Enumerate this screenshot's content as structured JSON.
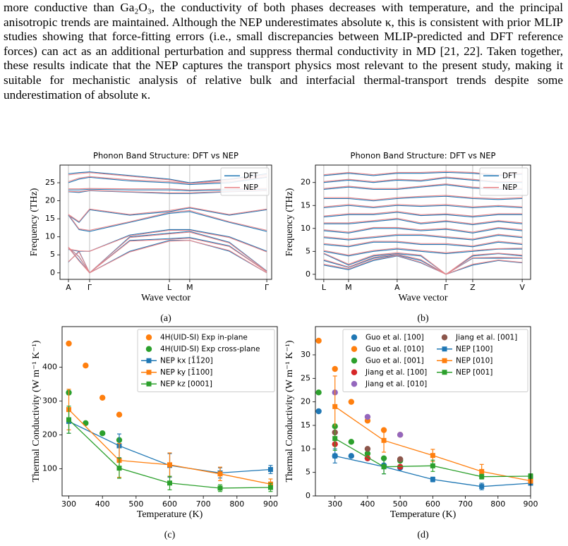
{
  "paragraph": "more conductive than Ga₂O₃, the conductivity of both phases decreases with temperature, and the principal anisotropic trends are maintained. Although the NEP underestimates absolute κ, this is consistent with prior MLIP studies showing that force-fitting errors (i.e., small discrepancies between MLIP-predicted and DFT reference forces) can act as an additional perturbation and suppress thermal conductivity in MD [21, 22]. Taken together, these results indicate that the NEP captures the transport physics most relevant to the present study, making it suitable for mechanistic analysis of relative bulk and interfacial thermal-transport trends despite some underestimation of absolute κ.",
  "chart_data": [
    {
      "type": "band",
      "title": "Phonon Band Structure: DFT vs NEP",
      "x_label": "Wave vector",
      "y_label": "Frequency (THz)",
      "caption": "(a)",
      "x": [
        0.04,
        0.09,
        0.14,
        0.33,
        0.517,
        0.613,
        0.8,
        0.977
      ],
      "xlim": [
        0,
        1
      ],
      "ylim": [
        -1.8,
        29.9
      ],
      "xticks": [
        {
          "value": 0.04,
          "label": "A"
        },
        {
          "value": 0.14,
          "label": "Γ"
        },
        {
          "value": 0.517,
          "label": "L"
        },
        {
          "value": 0.613,
          "label": "M"
        },
        {
          "value": 0.977,
          "label": "Γ"
        }
      ],
      "yticks": [
        0,
        5,
        10,
        15,
        20,
        25
      ],
      "grid": "x",
      "legend": "upper right",
      "series": [
        {
          "name": "DFT",
          "color": "#1f77b4",
          "bands": [
            [
              7,
              3.5,
              0,
              6,
              9,
              9,
              6,
              0
            ],
            [
              7,
              4.5,
              0,
              9,
              9.5,
              9.8,
              7.5,
              0.3
            ],
            [
              3,
              6,
              0,
              10,
              11,
              11.5,
              8.5,
              0.5
            ],
            [
              6.5,
              6,
              6,
              10.5,
              12,
              12,
              10,
              6
            ],
            [
              16,
              12,
              11.5,
              14,
              16.5,
              17,
              14,
              11.5
            ],
            [
              16,
              14,
              17.5,
              16,
              17,
              18,
              16,
              17.5
            ],
            [
              22.5,
              22.3,
              22.8,
              22.4,
              22,
              22,
              22.5,
              22.8
            ],
            [
              23,
              23,
              23.2,
              23,
              23,
              22.8,
              23,
              23.2
            ],
            [
              25,
              26,
              26.5,
              25.5,
              25,
              24.5,
              25,
              26.5
            ],
            [
              27.5,
              27.8,
              28,
              27,
              26,
              25,
              26,
              27.5
            ]
          ]
        },
        {
          "name": "NEP",
          "color": "#e8868a",
          "bands": [
            [
              7,
              3.3,
              0,
              5.8,
              8.8,
              9,
              6.2,
              0
            ],
            [
              7.1,
              4.4,
              0,
              8.8,
              9.3,
              9.6,
              7.3,
              0.3
            ],
            [
              3.1,
              5.8,
              0,
              9.8,
              10.8,
              11.3,
              8.3,
              0.4
            ],
            [
              6.6,
              6.1,
              6,
              10.3,
              11.8,
              11.8,
              9.8,
              5.8
            ],
            [
              16.2,
              12.2,
              11.8,
              14.2,
              16.8,
              17.3,
              14.2,
              11.8
            ],
            [
              16.2,
              14.2,
              17.7,
              16.2,
              17.3,
              18.2,
              16.2,
              17.7
            ],
            [
              22.6,
              22.5,
              22.9,
              22.5,
              22.2,
              22.2,
              22.6,
              22.9
            ],
            [
              23.3,
              23.3,
              23.4,
              23.3,
              23.3,
              23,
              23.3,
              23.4
            ],
            [
              25.3,
              26.3,
              26.7,
              25.8,
              25.3,
              24.8,
              25.3,
              26.7
            ],
            [
              27.2,
              27.5,
              27.8,
              26.8,
              25.8,
              24.8,
              25.8,
              27.2
            ]
          ]
        }
      ]
    },
    {
      "type": "band",
      "title": "Phonon Band Structure: DFT vs NEP",
      "x_label": "Wave vector",
      "y_label": "Frequency (THz)",
      "caption": "(b)",
      "x": [
        0.039,
        0.154,
        0.27,
        0.38,
        0.49,
        0.607,
        0.731,
        0.85,
        0.961
      ],
      "xlim": [
        0,
        1
      ],
      "ylim": [
        -1.1,
        23.8
      ],
      "xticks": [
        {
          "value": 0.039,
          "label": "L"
        },
        {
          "value": 0.154,
          "label": "M"
        },
        {
          "value": 0.38,
          "label": "A"
        },
        {
          "value": 0.607,
          "label": "Γ"
        },
        {
          "value": 0.731,
          "label": "Z"
        },
        {
          "value": 0.961,
          "label": "V"
        }
      ],
      "yticks": [
        0,
        5,
        10,
        15,
        20
      ],
      "grid": "x",
      "legend": "upper right",
      "series": [
        {
          "name": "DFT",
          "color": "#1f77b4",
          "bands": [
            [
              2,
              1,
              3,
              4,
              2.5,
              0,
              2,
              3,
              2.5
            ],
            [
              3,
              1.5,
              3.5,
              4.2,
              3,
              0,
              3.5,
              3.5,
              3.5
            ],
            [
              4.5,
              2,
              4,
              4.5,
              4,
              0,
              4,
              4.5,
              4
            ],
            [
              5,
              4,
              5,
              5.5,
              5,
              4.5,
              5,
              5.5,
              5.5
            ],
            [
              6.5,
              6,
              7,
              7,
              6.5,
              6.5,
              6,
              7,
              6.5
            ],
            [
              8,
              7.5,
              8,
              8.5,
              8.5,
              8,
              7.5,
              8.5,
              8
            ],
            [
              9.5,
              9,
              10,
              10,
              9.5,
              9.8,
              9,
              10,
              9.5
            ],
            [
              11,
              11,
              11.5,
              12,
              11,
              11.5,
              10.8,
              11.5,
              11
            ],
            [
              12.5,
              13,
              13,
              13.5,
              12.8,
              13,
              12.5,
              13,
              13
            ],
            [
              14.5,
              15,
              14.5,
              15,
              14.8,
              15,
              14.5,
              14.8,
              14.5
            ],
            [
              16.5,
              16.5,
              16,
              16.5,
              16.8,
              17,
              16.5,
              16.3,
              16.5
            ],
            [
              18.5,
              19,
              18.5,
              18.5,
              19,
              19.5,
              18.8,
              18.5,
              18.5
            ],
            [
              20,
              20.5,
              20,
              20.5,
              20.3,
              21,
              20.5,
              20,
              20
            ],
            [
              21.5,
              22,
              21.5,
              22,
              22,
              22.2,
              22,
              21.5,
              21.8
            ]
          ]
        },
        {
          "name": "NEP",
          "color": "#e8868a",
          "bands": [
            [
              2.2,
              1.2,
              3.2,
              4.1,
              2.6,
              0,
              2.2,
              3.1,
              2.6
            ],
            [
              3.2,
              1.6,
              3.7,
              4.4,
              3.2,
              0,
              3.6,
              3.7,
              3.6
            ],
            [
              4.6,
              2.2,
              4.2,
              4.7,
              4.2,
              0,
              4.2,
              4.6,
              4.2
            ],
            [
              5.2,
              4.2,
              5.2,
              5.7,
              5.2,
              4.7,
              5.2,
              5.6,
              5.7
            ],
            [
              6.7,
              6.2,
              7.2,
              7.2,
              6.7,
              6.7,
              6.2,
              7.2,
              6.7
            ],
            [
              8.2,
              7.7,
              8.2,
              8.7,
              8.7,
              8.2,
              7.7,
              8.7,
              8.2
            ],
            [
              9.7,
              9.2,
              10.2,
              10.2,
              9.7,
              10,
              9.2,
              10.2,
              9.7
            ],
            [
              11.2,
              11.2,
              11.7,
              12.2,
              11.2,
              11.7,
              11,
              11.7,
              11.2
            ],
            [
              12.7,
              13.2,
              13.2,
              13.7,
              13,
              13.2,
              12.7,
              13.2,
              13.2
            ],
            [
              14.7,
              15.2,
              14.7,
              15.2,
              15,
              15.2,
              14.7,
              15,
              14.7
            ],
            [
              16.7,
              16.7,
              16.2,
              16.7,
              17,
              17.2,
              16.7,
              16.5,
              16.7
            ],
            [
              18.7,
              19.2,
              18.7,
              18.7,
              19.2,
              19.7,
              19,
              18.7,
              18.7
            ],
            [
              20.2,
              20.7,
              20.2,
              20.7,
              20.5,
              21.2,
              20.7,
              20.2,
              20.2
            ],
            [
              21.7,
              22.2,
              21.7,
              22.2,
              22.2,
              22.4,
              22.2,
              21.7,
              22
            ]
          ]
        }
      ]
    },
    {
      "type": "errorbar",
      "x_label": "Temperature (K)",
      "y_label": "Thermal Conductivity (W m⁻¹ K⁻¹)",
      "caption": "(c)",
      "xlim": [
        280,
        920
      ],
      "ylim": [
        20,
        520
      ],
      "xticks": [
        300,
        400,
        500,
        600,
        700,
        800,
        900
      ],
      "yticks": [
        100,
        200,
        300,
        400
      ],
      "grid": false,
      "legend": "upper right",
      "legend_columns": 1,
      "series": [
        {
          "name": "4H(UID-SI) Exp in-plane",
          "color": "#ff7f0e",
          "marker": "o",
          "line": false,
          "x": [
            300,
            350,
            400,
            450
          ],
          "values": [
            470,
            405,
            310,
            260
          ]
        },
        {
          "name": "4H(UID-SI) Exp cross-plane",
          "color": "#2ca02c",
          "marker": "o",
          "line": false,
          "x": [
            300,
            350,
            400,
            450
          ],
          "values": [
            325,
            235,
            205,
            185
          ]
        },
        {
          "name": "NEP kx [1̄1̄20]",
          "color": "#1f77b4",
          "marker": "s",
          "line": true,
          "x": [
            300,
            450,
            600,
            750,
            900
          ],
          "values": [
            240,
            168,
            110,
            88,
            98
          ],
          "errors": [
            35,
            35,
            35,
            15,
            12
          ]
        },
        {
          "name": "NEP ky [1̄100]",
          "color": "#ff7f0e",
          "marker": "s",
          "line": true,
          "x": [
            300,
            450,
            600,
            750,
            900
          ],
          "values": [
            275,
            125,
            112,
            85,
            55
          ],
          "errors": [
            60,
            50,
            35,
            20,
            15
          ]
        },
        {
          "name": "NEP kz [0001]",
          "color": "#2ca02c",
          "marker": "s",
          "line": true,
          "x": [
            300,
            450,
            600,
            750,
            900
          ],
          "values": [
            245,
            102,
            58,
            43,
            45
          ],
          "errors": [
            40,
            30,
            20,
            10,
            12
          ]
        }
      ]
    },
    {
      "type": "errorbar",
      "x_label": "Temperature (K)",
      "y_label": "Thermal Conductivity (W m⁻¹ K⁻¹)",
      "caption": "(d)",
      "xlim": [
        240,
        900
      ],
      "ylim": [
        0,
        36
      ],
      "xticks": [
        300,
        400,
        500,
        600,
        700,
        800,
        900
      ],
      "yticks": [
        0,
        5,
        10,
        15,
        20,
        25,
        30
      ],
      "grid": false,
      "legend": "upper right",
      "legend_columns": 2,
      "series": [
        {
          "name": "Guo et al. [100]",
          "color": "#1f77b4",
          "marker": "o",
          "line": false,
          "x": [
            250,
            300,
            350,
            400,
            450,
            500
          ],
          "values": [
            18,
            8.5,
            8.5,
            8,
            6.5,
            6
          ]
        },
        {
          "name": "Guo et al. [010]",
          "color": "#ff7f0e",
          "marker": "o",
          "line": false,
          "x": [
            250,
            300,
            350,
            400,
            450,
            500
          ],
          "values": [
            33,
            27,
            20,
            16,
            14,
            13
          ]
        },
        {
          "name": "Guo et al. [001]",
          "color": "#2ca02c",
          "marker": "o",
          "line": false,
          "x": [
            250,
            300,
            350,
            400,
            450,
            500
          ],
          "values": [
            22,
            14.8,
            11.5,
            9,
            8,
            7.5
          ]
        },
        {
          "name": "Jiang et al. [100]",
          "color": "#d62728",
          "marker": "o",
          "line": false,
          "x": [
            300,
            400,
            500
          ],
          "values": [
            11,
            8,
            6.2
          ]
        },
        {
          "name": "Jiang et al. [010]",
          "color": "#9467bd",
          "marker": "o",
          "line": false,
          "x": [
            300,
            400,
            500
          ],
          "values": [
            22,
            16.8,
            13
          ]
        },
        {
          "name": "Jiang et al. [001]",
          "color": "#8c564b",
          "marker": "o",
          "line": false,
          "x": [
            300,
            400,
            500
          ],
          "values": [
            13.5,
            10,
            7.8
          ]
        },
        {
          "name": "NEP [100]",
          "color": "#1f77b4",
          "marker": "s",
          "line": true,
          "x": [
            300,
            450,
            600,
            750,
            900
          ],
          "values": [
            8.5,
            6.2,
            3.5,
            2,
            2.7
          ],
          "errors": [
            1.5,
            1.5,
            0.5,
            0.7,
            0.3
          ]
        },
        {
          "name": "NEP [010]",
          "color": "#ff7f0e",
          "marker": "s",
          "line": true,
          "x": [
            300,
            450,
            600,
            750,
            900
          ],
          "values": [
            19,
            11.8,
            8.6,
            5.2,
            3.2
          ],
          "errors": [
            6.5,
            2.5,
            1.3,
            1.5,
            0.5
          ]
        },
        {
          "name": "NEP [001]",
          "color": "#2ca02c",
          "marker": "s",
          "line": true,
          "x": [
            300,
            450,
            600,
            750,
            900
          ],
          "values": [
            12.2,
            6.2,
            6.4,
            4.1,
            4.2
          ],
          "errors": [
            2.5,
            1.5,
            1.2,
            0.5,
            0.5
          ]
        }
      ]
    }
  ]
}
